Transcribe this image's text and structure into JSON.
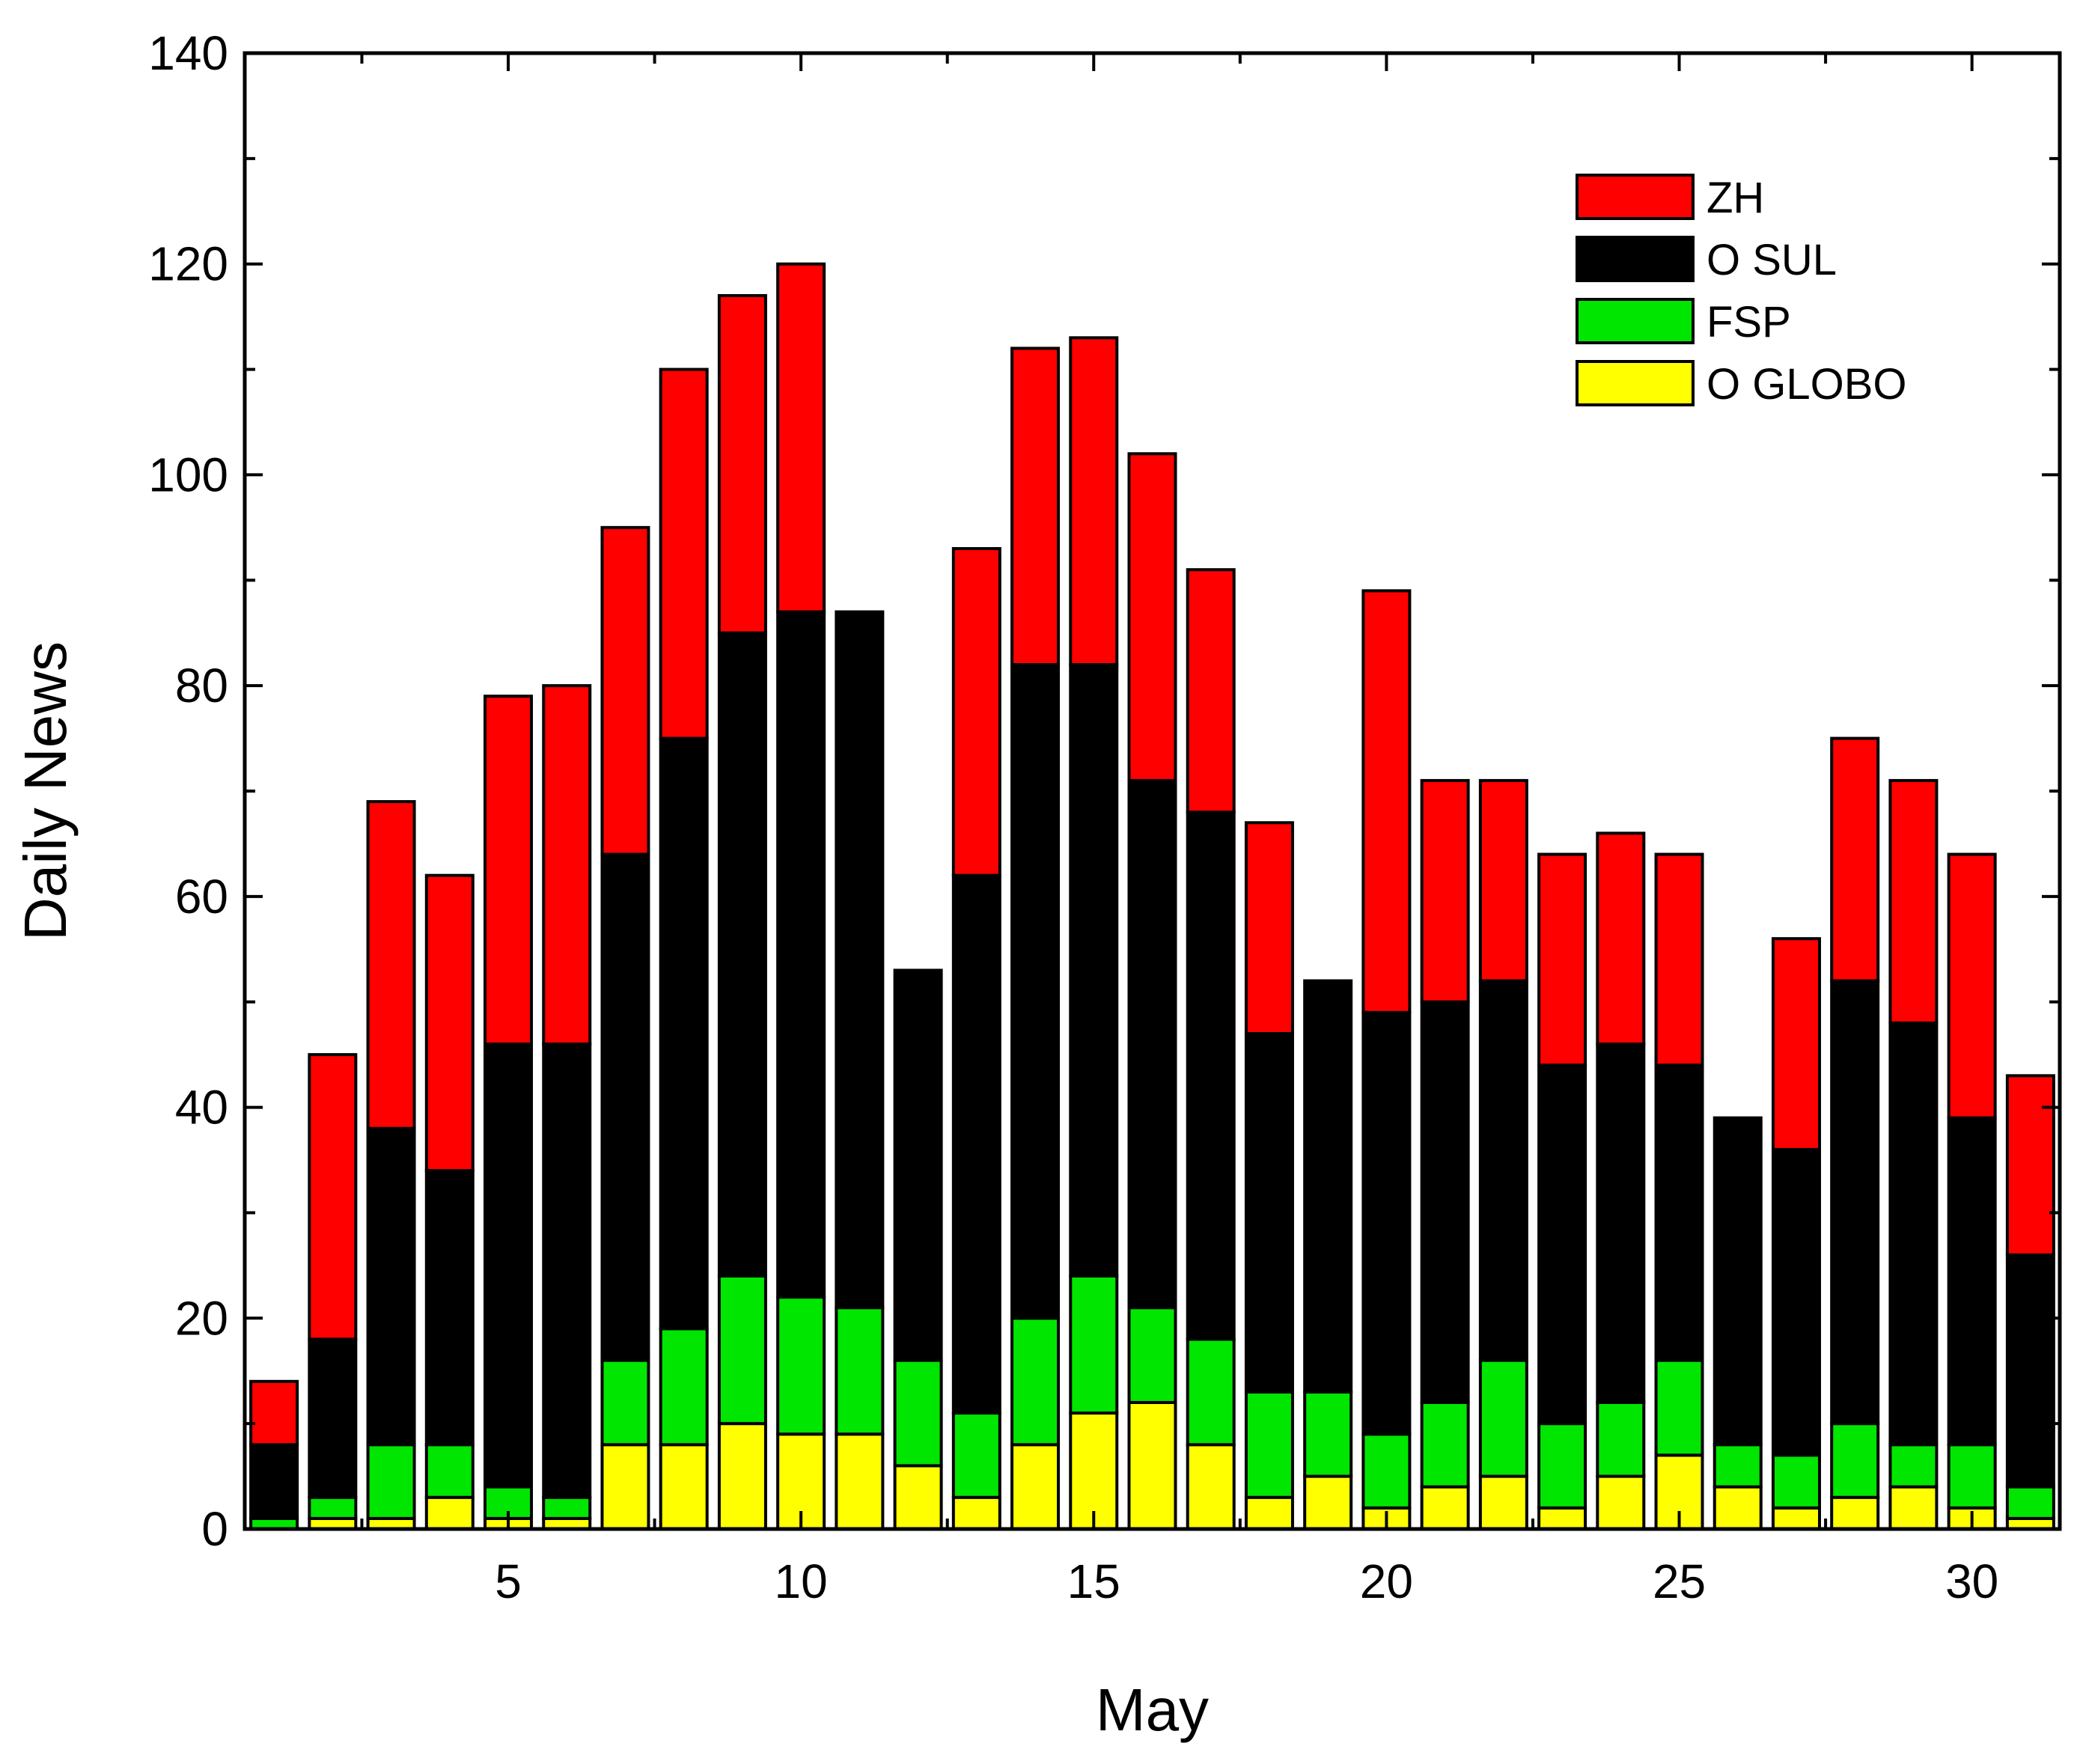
{
  "chart_data": {
    "type": "bar",
    "stacked": true,
    "xlabel": "May",
    "ylabel": "Daily News",
    "ylim": [
      0,
      140
    ],
    "xlim": [
      0.5,
      31.5
    ],
    "yticks": [
      0,
      20,
      40,
      60,
      80,
      100,
      120,
      140
    ],
    "xticks": [
      5,
      10,
      15,
      20,
      25,
      30
    ],
    "legend_position": "top-right",
    "categories": [
      1,
      2,
      3,
      4,
      5,
      6,
      7,
      8,
      9,
      10,
      11,
      12,
      13,
      14,
      15,
      16,
      17,
      18,
      19,
      20,
      21,
      22,
      23,
      24,
      25,
      26,
      27,
      28,
      29,
      30,
      31
    ],
    "series": [
      {
        "name": "O GLOBO",
        "color": "#ffff00",
        "values": [
          0,
          1,
          1,
          3,
          1,
          1,
          8,
          8,
          10,
          9,
          9,
          6,
          3,
          8,
          11,
          12,
          8,
          3,
          5,
          2,
          4,
          5,
          2,
          5,
          7,
          4,
          2,
          3,
          4,
          2,
          1
        ]
      },
      {
        "name": "FSP",
        "color": "#00e600",
        "values": [
          1,
          2,
          7,
          5,
          3,
          2,
          8,
          11,
          14,
          13,
          12,
          10,
          8,
          12,
          13,
          9,
          10,
          10,
          8,
          7,
          8,
          11,
          8,
          7,
          9,
          4,
          5,
          7,
          4,
          6,
          3
        ]
      },
      {
        "name": "O SUL",
        "color": "#000000",
        "values": [
          7,
          15,
          30,
          26,
          42,
          43,
          48,
          56,
          61,
          65,
          66,
          37,
          51,
          62,
          58,
          50,
          50,
          34,
          39,
          40,
          38,
          36,
          34,
          34,
          28,
          31,
          29,
          42,
          40,
          31,
          22
        ]
      },
      {
        "name": "ZH",
        "color": "#ff0000",
        "values": [
          6,
          27,
          31,
          28,
          33,
          34,
          31,
          35,
          32,
          33,
          0,
          0,
          31,
          30,
          31,
          31,
          23,
          20,
          0,
          40,
          21,
          19,
          20,
          20,
          20,
          0,
          20,
          23,
          23,
          25,
          17
        ]
      }
    ],
    "legend_order": [
      "ZH",
      "O SUL",
      "FSP",
      "O GLOBO"
    ]
  }
}
